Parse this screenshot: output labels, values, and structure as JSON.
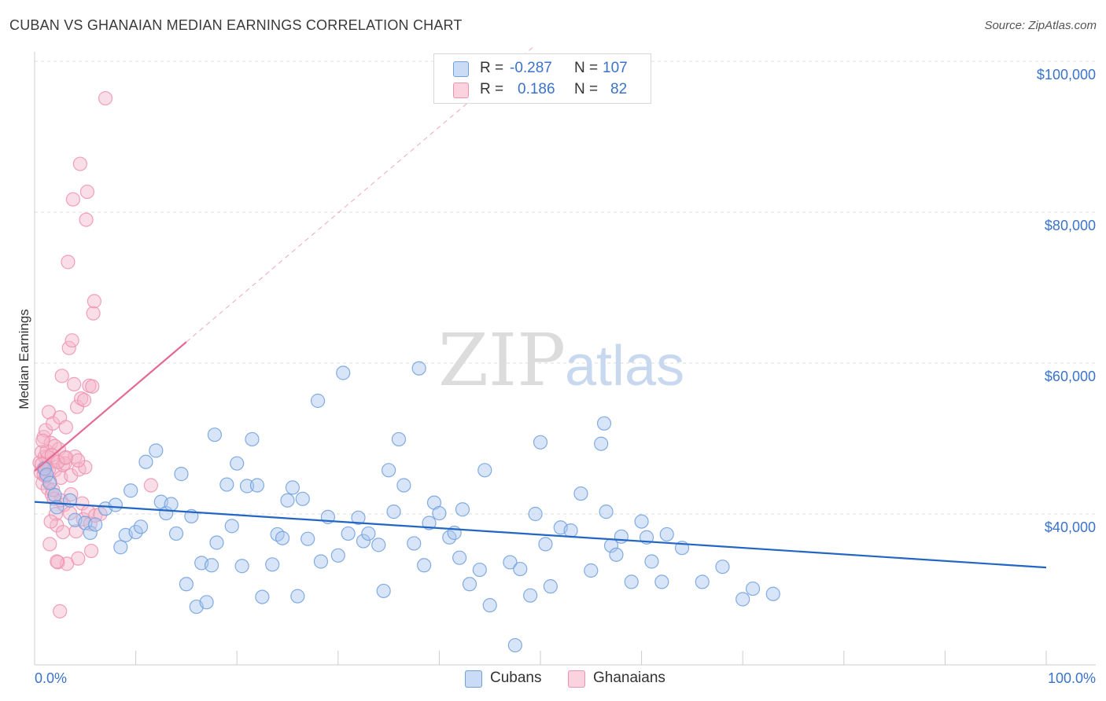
{
  "header": {
    "title": "CUBAN VS GHANAIAN MEDIAN EARNINGS CORRELATION CHART",
    "source": "Source: ZipAtlas.com"
  },
  "watermark": {
    "zip": "ZIP",
    "atlas": "atlas"
  },
  "legend": {
    "rows": [
      {
        "r_label": "R =",
        "r_value": "-0.287",
        "n_label": "N =",
        "n_value": "107",
        "color": "#a8c6f0"
      },
      {
        "r_label": "R =",
        "r_value": "0.186",
        "n_label": "N =",
        "n_value": "82",
        "color": "#f5b6c9"
      }
    ]
  },
  "bottom_legend": {
    "cubans": "Cubans",
    "ghanaians": "Ghanaians"
  },
  "chart_data": {
    "type": "scatter",
    "title": "CUBAN VS GHANAIAN MEDIAN EARNINGS CORRELATION CHART",
    "ylabel": "Median Earnings",
    "xlabel": "",
    "x_tick_labels": [
      "0.0%",
      "100.0%"
    ],
    "y_tick_labels": [
      "$40,000",
      "$60,000",
      "$80,000",
      "$100,000"
    ],
    "y_ticks": [
      40000,
      60000,
      80000,
      100000
    ],
    "xlim": [
      0,
      100
    ],
    "ylim": [
      20000,
      102000
    ],
    "grid": true,
    "series": [
      {
        "name": "Cubans",
        "color": "#6f9fdc",
        "line_color": "#2266c4",
        "trend": {
          "x0": 0,
          "y0": 41600,
          "x1": 100,
          "y1": 32900
        },
        "points": [
          [
            1,
            46000
          ],
          [
            1.2,
            45200
          ],
          [
            1.5,
            44100
          ],
          [
            2,
            42500
          ],
          [
            2.2,
            40900
          ],
          [
            3.5,
            41800
          ],
          [
            4,
            39200
          ],
          [
            5,
            38800
          ],
          [
            5.5,
            37500
          ],
          [
            6,
            38600
          ],
          [
            7,
            40700
          ],
          [
            8,
            41200
          ],
          [
            8.5,
            35600
          ],
          [
            9,
            37200
          ],
          [
            9.5,
            43100
          ],
          [
            10,
            37600
          ],
          [
            10.5,
            38300
          ],
          [
            11,
            46900
          ],
          [
            12,
            48400
          ],
          [
            12.5,
            41600
          ],
          [
            13,
            40100
          ],
          [
            13.5,
            41300
          ],
          [
            14,
            37400
          ],
          [
            14.5,
            45300
          ],
          [
            15,
            30700
          ],
          [
            15.5,
            39700
          ],
          [
            16,
            27700
          ],
          [
            16.5,
            33500
          ],
          [
            17,
            28300
          ],
          [
            17.5,
            33200
          ],
          [
            17.8,
            50500
          ],
          [
            18,
            36200
          ],
          [
            19,
            43900
          ],
          [
            19.5,
            38400
          ],
          [
            20,
            46700
          ],
          [
            20.5,
            33100
          ],
          [
            21,
            43700
          ],
          [
            21.5,
            49900
          ],
          [
            22,
            43800
          ],
          [
            22.5,
            29000
          ],
          [
            23.5,
            33300
          ],
          [
            24,
            37300
          ],
          [
            24.5,
            36800
          ],
          [
            25,
            41800
          ],
          [
            25.5,
            43500
          ],
          [
            26,
            29100
          ],
          [
            27,
            36700
          ],
          [
            28,
            55000
          ],
          [
            28.3,
            33700
          ],
          [
            29,
            39600
          ],
          [
            30,
            34500
          ],
          [
            30.5,
            58700
          ],
          [
            31,
            37400
          ],
          [
            32,
            39500
          ],
          [
            32.5,
            36400
          ],
          [
            33,
            37400
          ],
          [
            34,
            35900
          ],
          [
            34.5,
            29800
          ],
          [
            35,
            45800
          ],
          [
            35.5,
            40300
          ],
          [
            36,
            49900
          ],
          [
            36.5,
            43800
          ],
          [
            37.5,
            36100
          ],
          [
            38,
            59300
          ],
          [
            38.5,
            33200
          ],
          [
            39.5,
            41500
          ],
          [
            40,
            40100
          ],
          [
            41,
            36900
          ],
          [
            41.5,
            37500
          ],
          [
            42,
            34200
          ],
          [
            42.3,
            40600
          ],
          [
            43,
            30700
          ],
          [
            44,
            32600
          ],
          [
            44.5,
            45800
          ],
          [
            47,
            33600
          ],
          [
            47.5,
            22600
          ],
          [
            48,
            32700
          ],
          [
            49,
            29200
          ],
          [
            49.5,
            40000
          ],
          [
            50,
            49500
          ],
          [
            50.5,
            36000
          ],
          [
            51,
            30400
          ],
          [
            52,
            38200
          ],
          [
            53,
            37800
          ],
          [
            54,
            42700
          ],
          [
            55,
            32500
          ],
          [
            56,
            49300
          ],
          [
            56.3,
            52000
          ],
          [
            56.5,
            40300
          ],
          [
            57,
            35800
          ],
          [
            57.5,
            34600
          ],
          [
            58,
            37000
          ],
          [
            59,
            31000
          ],
          [
            60,
            39000
          ],
          [
            60.5,
            36900
          ],
          [
            61,
            33700
          ],
          [
            62,
            31000
          ],
          [
            62.5,
            37300
          ],
          [
            66,
            31000
          ],
          [
            70,
            28700
          ],
          [
            71,
            30100
          ],
          [
            73,
            29400
          ],
          [
            68,
            33000
          ],
          [
            64,
            35500
          ],
          [
            26.5,
            42000
          ],
          [
            45,
            27900
          ],
          [
            39,
            38800
          ]
        ]
      },
      {
        "name": "Ghanaians",
        "color": "#ef90ae",
        "line_color": "#e46a93",
        "trend": {
          "x0": 0,
          "y0": 45700,
          "x1": 15,
          "y1": 62800,
          "dash_to": {
            "x": 100,
            "y": 158000
          }
        },
        "points": [
          [
            0.5,
            46800
          ],
          [
            0.6,
            45500
          ],
          [
            0.7,
            48200
          ],
          [
            0.8,
            44100
          ],
          [
            0.9,
            50200
          ],
          [
            1,
            47600
          ],
          [
            1.1,
            51100
          ],
          [
            1.2,
            46300
          ],
          [
            1.3,
            43400
          ],
          [
            1.4,
            53500
          ],
          [
            1.5,
            36000
          ],
          [
            1.6,
            49400
          ],
          [
            1.7,
            42600
          ],
          [
            1.8,
            52000
          ],
          [
            1.9,
            47000
          ],
          [
            2,
            45800
          ],
          [
            2.1,
            40000
          ],
          [
            2.2,
            38500
          ],
          [
            2.3,
            33600
          ],
          [
            2.4,
            48600
          ],
          [
            2.5,
            52800
          ],
          [
            2.6,
            44800
          ],
          [
            2.7,
            58300
          ],
          [
            2.8,
            46500
          ],
          [
            2.9,
            41200
          ],
          [
            3,
            47400
          ],
          [
            3.1,
            51500
          ],
          [
            3.2,
            33400
          ],
          [
            3.3,
            73400
          ],
          [
            3.4,
            62000
          ],
          [
            3.5,
            40100
          ],
          [
            3.6,
            45100
          ],
          [
            3.7,
            63000
          ],
          [
            3.8,
            81700
          ],
          [
            3.9,
            57200
          ],
          [
            4,
            47600
          ],
          [
            4.1,
            37700
          ],
          [
            4.2,
            54200
          ],
          [
            4.3,
            34100
          ],
          [
            4.4,
            45900
          ],
          [
            4.5,
            86400
          ],
          [
            4.6,
            55300
          ],
          [
            4.7,
            41400
          ],
          [
            4.8,
            39300
          ],
          [
            4.9,
            55100
          ],
          [
            5,
            46200
          ],
          [
            5.1,
            79000
          ],
          [
            5.2,
            82700
          ],
          [
            5.3,
            40300
          ],
          [
            5.4,
            57000
          ],
          [
            5.5,
            38700
          ],
          [
            5.6,
            35100
          ],
          [
            5.7,
            56900
          ],
          [
            5.8,
            66600
          ],
          [
            5.9,
            68200
          ],
          [
            6,
            39800
          ],
          [
            6.5,
            40000
          ],
          [
            7,
            95100
          ],
          [
            1.3,
            47500
          ],
          [
            1.6,
            39000
          ],
          [
            2.6,
            41800
          ],
          [
            0.9,
            45200
          ],
          [
            1.2,
            48300
          ],
          [
            2,
            49000
          ],
          [
            3,
            46700
          ],
          [
            2.2,
            33700
          ],
          [
            1.5,
            44300
          ],
          [
            0.8,
            49700
          ],
          [
            1.9,
            42000
          ],
          [
            2.8,
            37600
          ],
          [
            3.6,
            42600
          ],
          [
            4.3,
            47100
          ],
          [
            11.5,
            43800
          ],
          [
            1.4,
            45900
          ],
          [
            0.9,
            46000
          ],
          [
            1.7,
            47800
          ],
          [
            2.3,
            46900
          ],
          [
            3.1,
            47500
          ],
          [
            0.7,
            46600
          ],
          [
            1.1,
            45000
          ],
          [
            2.5,
            27100
          ],
          [
            1.8,
            43200
          ]
        ]
      }
    ]
  }
}
